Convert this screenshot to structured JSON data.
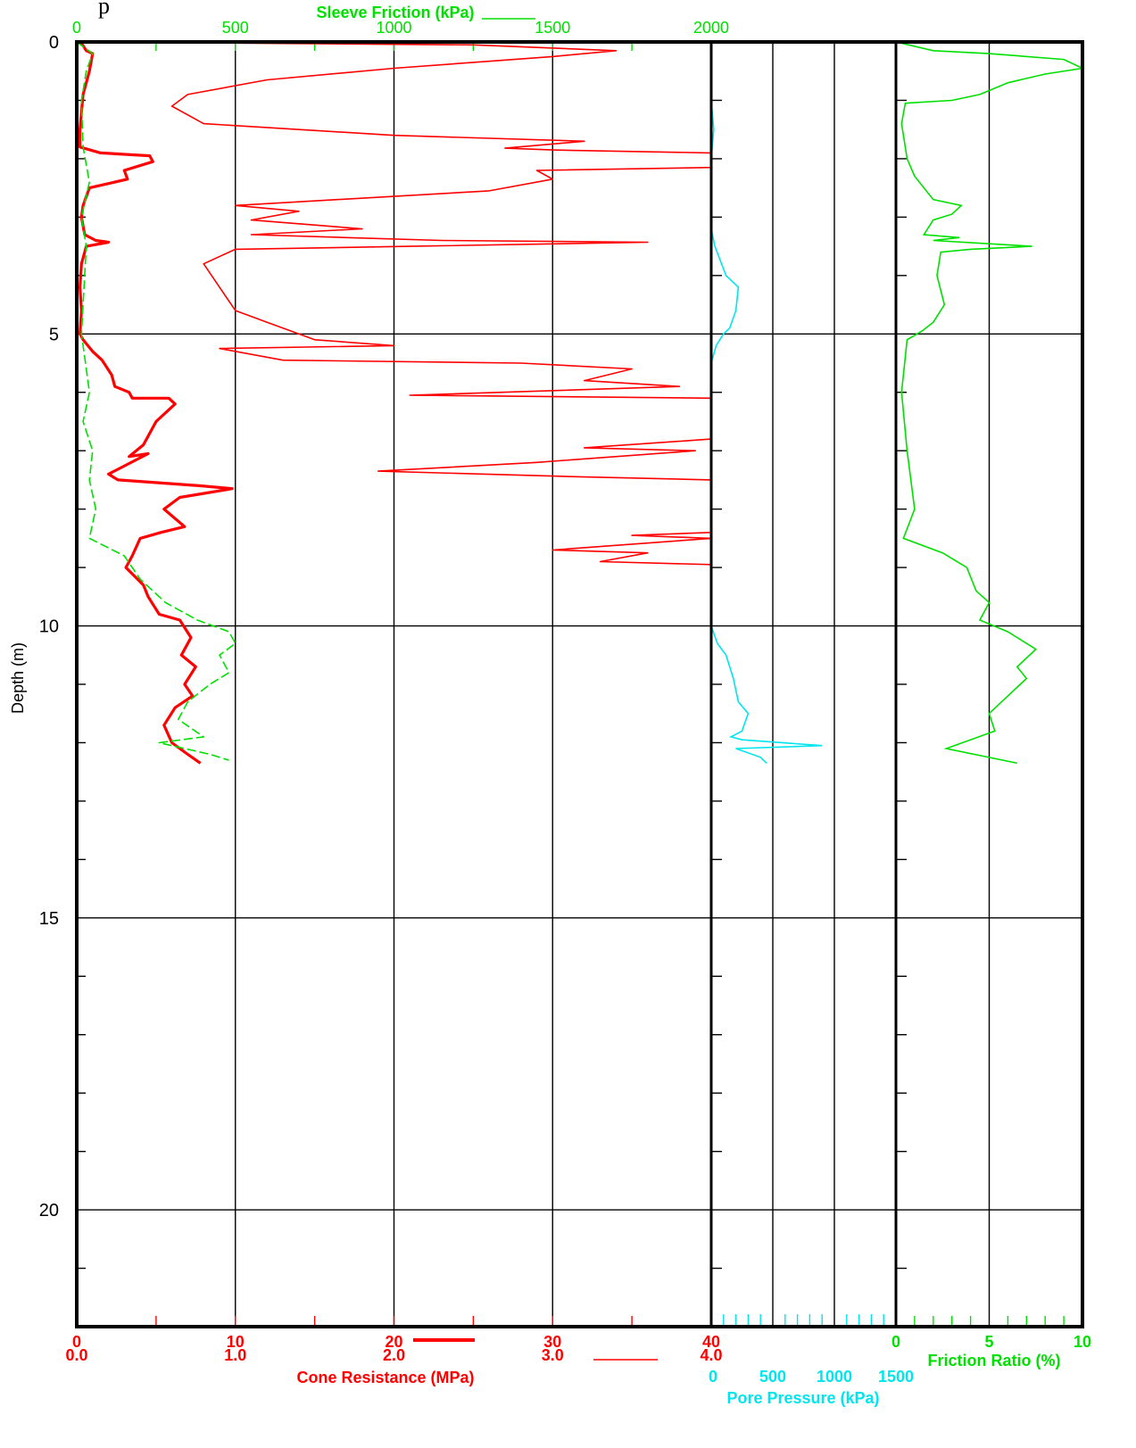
{
  "header_fragment": "p",
  "colors": {
    "cone": "#ff0000",
    "sleeve": "#00e000",
    "pore": "#00e5ee",
    "frame": "#000000"
  },
  "chart_data": {
    "type": "line",
    "y_axis": {
      "label": "Depth (m)",
      "range": [
        0,
        22
      ],
      "ticks": [
        "0",
        "5",
        "10",
        "15",
        "20"
      ],
      "tick_values": [
        0,
        5,
        10,
        15,
        20
      ],
      "reversed": true
    },
    "panels": [
      {
        "id": "cone-sleeve",
        "grid": true,
        "axes": {
          "sleeve_friction": {
            "label": "Sleeve Friction (kPa)",
            "range": [
              0,
              2000
            ],
            "ticks": [
              "0",
              "500",
              "1000",
              "1500",
              "2000"
            ],
            "tick_values": [
              0,
              500,
              1000,
              1500,
              2000
            ]
          },
          "cone_resistance_primary": {
            "label": "Cone Resistance (MPa)",
            "range": [
              0,
              40
            ],
            "ticks": [
              "0",
              "10",
              "20",
              "30",
              "40"
            ],
            "tick_values": [
              0,
              10,
              20,
              30,
              40
            ]
          },
          "cone_resistance_expanded": {
            "range": [
              0,
              4
            ],
            "ticks": [
              "0.0",
              "1.0",
              "2.0",
              "3.0",
              "4.0"
            ],
            "tick_values": [
              0,
              1,
              2,
              3,
              4
            ]
          }
        },
        "series": [
          {
            "key": "qc_thick",
            "scale": "cone_resistance_primary",
            "style": "thick",
            "points": [
              [
                0,
                0
              ],
              [
                0.3,
                0.02
              ],
              [
                0.6,
                0.15
              ],
              [
                1.0,
                0.2
              ],
              [
                0.8,
                0.5
              ],
              [
                0.4,
                0.9
              ],
              [
                0.2,
                1.5
              ],
              [
                0.2,
                1.8
              ],
              [
                1.5,
                1.9
              ],
              [
                4.6,
                1.95
              ],
              [
                4.8,
                2.05
              ],
              [
                3.0,
                2.2
              ],
              [
                3.2,
                2.35
              ],
              [
                0.8,
                2.5
              ],
              [
                0.4,
                2.8
              ],
              [
                0.3,
                3.0
              ],
              [
                0.5,
                3.3
              ],
              [
                1.2,
                3.4
              ],
              [
                2.0,
                3.43
              ],
              [
                0.6,
                3.5
              ],
              [
                0.3,
                3.8
              ],
              [
                0.2,
                4.2
              ],
              [
                0.3,
                4.6
              ],
              [
                0.2,
                5.0
              ],
              [
                0.4,
                5.1
              ],
              [
                1.0,
                5.3
              ],
              [
                1.6,
                5.45
              ],
              [
                2.2,
                5.7
              ],
              [
                2.4,
                5.9
              ],
              [
                3.3,
                6.0
              ],
              [
                3.5,
                6.1
              ],
              [
                5.8,
                6.1
              ],
              [
                6.2,
                6.2
              ],
              [
                5.0,
                6.5
              ],
              [
                4.2,
                6.9
              ],
              [
                3.3,
                7.1
              ],
              [
                4.5,
                7.05
              ],
              [
                2.0,
                7.4
              ],
              [
                2.6,
                7.5
              ],
              [
                7.8,
                7.6
              ],
              [
                9.8,
                7.65
              ],
              [
                6.5,
                7.8
              ],
              [
                5.5,
                8.0
              ],
              [
                6.8,
                8.3
              ],
              [
                5.3,
                8.4
              ],
              [
                4.0,
                8.5
              ],
              [
                3.5,
                8.8
              ],
              [
                3.1,
                9.0
              ],
              [
                4.2,
                9.3
              ],
              [
                4.5,
                9.5
              ],
              [
                5.2,
                9.8
              ],
              [
                6.5,
                9.9
              ],
              [
                7.2,
                10.2
              ],
              [
                6.6,
                10.5
              ],
              [
                7.5,
                10.7
              ],
              [
                6.8,
                11.0
              ],
              [
                7.3,
                11.2
              ],
              [
                6.2,
                11.4
              ],
              [
                5.5,
                11.7
              ],
              [
                6.0,
                12.0
              ],
              [
                7.0,
                12.2
              ],
              [
                7.8,
                12.35
              ]
            ]
          },
          {
            "key": "qc_thin",
            "scale": "cone_resistance_expanded",
            "style": "thin",
            "points": [
              [
                0,
                0
              ],
              [
                2.5,
                0.05
              ],
              [
                3.4,
                0.15
              ],
              [
                3.0,
                0.25
              ],
              [
                2.0,
                0.45
              ],
              [
                1.2,
                0.65
              ],
              [
                0.7,
                0.9
              ],
              [
                0.6,
                1.1
              ],
              [
                0.8,
                1.4
              ],
              [
                2.0,
                1.6
              ],
              [
                3.2,
                1.7
              ],
              [
                2.7,
                1.82
              ],
              [
                3.0,
                1.85
              ],
              [
                4.0,
                1.9
              ],
              [
                4.0,
                2.15
              ],
              [
                2.9,
                2.2
              ],
              [
                3.0,
                2.35
              ],
              [
                2.6,
                2.55
              ],
              [
                1.0,
                2.8
              ],
              [
                1.4,
                2.9
              ],
              [
                1.1,
                3.05
              ],
              [
                1.8,
                3.2
              ],
              [
                1.1,
                3.3
              ],
              [
                1.7,
                3.35
              ],
              [
                2.3,
                3.4
              ],
              [
                3.6,
                3.43
              ],
              [
                2.1,
                3.5
              ],
              [
                1.0,
                3.55
              ],
              [
                0.8,
                3.8
              ],
              [
                0.9,
                4.2
              ],
              [
                1.0,
                4.6
              ],
              [
                1.2,
                4.8
              ],
              [
                1.5,
                5.1
              ],
              [
                2.0,
                5.2
              ],
              [
                0.9,
                5.25
              ],
              [
                1.3,
                5.45
              ],
              [
                2.8,
                5.5
              ],
              [
                3.5,
                5.6
              ],
              [
                3.2,
                5.8
              ],
              [
                3.8,
                5.9
              ],
              [
                2.1,
                6.05
              ],
              [
                4.0,
                6.1
              ],
              [
                4.0,
                6.8
              ],
              [
                3.2,
                6.95
              ],
              [
                3.9,
                7.0
              ],
              [
                2.9,
                7.2
              ],
              [
                1.9,
                7.35
              ],
              [
                3.2,
                7.45
              ],
              [
                4.0,
                7.5
              ],
              [
                4.0,
                8.4
              ],
              [
                3.5,
                8.45
              ],
              [
                4.0,
                8.5
              ],
              [
                3.0,
                8.7
              ],
              [
                3.6,
                8.75
              ],
              [
                3.3,
                8.9
              ],
              [
                4.0,
                8.95
              ],
              [
                4.0,
                12.35
              ]
            ]
          },
          {
            "key": "fs",
            "scale": "sleeve_friction",
            "style": "dashed",
            "points": [
              [
                0,
                0
              ],
              [
                50,
                0.2
              ],
              [
                30,
                0.5
              ],
              [
                15,
                1.0
              ],
              [
                20,
                1.8
              ],
              [
                40,
                2.4
              ],
              [
                15,
                3.0
              ],
              [
                30,
                3.5
              ],
              [
                20,
                4.5
              ],
              [
                15,
                5.0
              ],
              [
                30,
                5.6
              ],
              [
                40,
                6.0
              ],
              [
                20,
                6.5
              ],
              [
                50,
                7.0
              ],
              [
                40,
                7.5
              ],
              [
                60,
                8.0
              ],
              [
                40,
                8.5
              ],
              [
                150,
                8.8
              ],
              [
                200,
                9.2
              ],
              [
                280,
                9.6
              ],
              [
                380,
                9.9
              ],
              [
                480,
                10.1
              ],
              [
                500,
                10.3
              ],
              [
                450,
                10.5
              ],
              [
                480,
                10.8
              ],
              [
                420,
                11.0
              ],
              [
                350,
                11.3
              ],
              [
                320,
                11.6
              ],
              [
                400,
                11.9
              ],
              [
                260,
                12.0
              ],
              [
                420,
                12.2
              ],
              [
                480,
                12.3
              ]
            ]
          }
        ]
      },
      {
        "id": "pore-pressure",
        "axis": {
          "label": "Pore Pressure (kPa)",
          "range": [
            0,
            1500
          ],
          "ticks": [
            "0",
            "500",
            "1000",
            "1500"
          ],
          "tick_values": [
            0,
            500,
            1000,
            1500
          ]
        },
        "series": [
          {
            "key": "u2",
            "points": [
              [
                0,
                0
              ],
              [
                0,
                1.0
              ],
              [
                20,
                1.5
              ],
              [
                0,
                2.0
              ],
              [
                0,
                3.2
              ],
              [
                30,
                3.5
              ],
              [
                120,
                4.0
              ],
              [
                220,
                4.2
              ],
              [
                200,
                4.6
              ],
              [
                150,
                4.9
              ],
              [
                100,
                5.0
              ],
              [
                40,
                5.2
              ],
              [
                0,
                5.5
              ],
              [
                0,
                10.0
              ],
              [
                50,
                10.3
              ],
              [
                120,
                10.5
              ],
              [
                180,
                10.9
              ],
              [
                220,
                11.3
              ],
              [
                300,
                11.5
              ],
              [
                250,
                11.8
              ],
              [
                160,
                11.9
              ],
              [
                250,
                11.95
              ],
              [
                900,
                12.05
              ],
              [
                200,
                12.1
              ],
              [
                400,
                12.25
              ],
              [
                450,
                12.35
              ]
            ]
          }
        ]
      },
      {
        "id": "friction-ratio",
        "axis": {
          "label": "Friction Ratio (%)",
          "range": [
            0,
            10
          ],
          "ticks": [
            "0",
            "5",
            "10"
          ],
          "tick_values": [
            0,
            5,
            10
          ]
        },
        "series": [
          {
            "key": "rf",
            "points": [
              [
                0,
                0
              ],
              [
                2,
                0.15
              ],
              [
                5,
                0.2
              ],
              [
                9,
                0.3
              ],
              [
                10,
                0.45
              ],
              [
                8,
                0.55
              ],
              [
                6,
                0.7
              ],
              [
                4.5,
                0.9
              ],
              [
                3,
                1.0
              ],
              [
                0.5,
                1.05
              ],
              [
                0.3,
                1.4
              ],
              [
                0.6,
                2.0
              ],
              [
                1,
                2.3
              ],
              [
                2,
                2.7
              ],
              [
                3.5,
                2.8
              ],
              [
                3.0,
                2.95
              ],
              [
                2.0,
                3.05
              ],
              [
                1.5,
                3.3
              ],
              [
                3.4,
                3.35
              ],
              [
                2.0,
                3.4
              ],
              [
                7.3,
                3.5
              ],
              [
                4.0,
                3.55
              ],
              [
                2.4,
                3.6
              ],
              [
                2.2,
                4.0
              ],
              [
                2.6,
                4.5
              ],
              [
                2.0,
                4.8
              ],
              [
                1.4,
                4.95
              ],
              [
                0.6,
                5.1
              ],
              [
                0.3,
                6.0
              ],
              [
                0.6,
                7.0
              ],
              [
                1.0,
                8.0
              ],
              [
                0.4,
                8.5
              ],
              [
                2.5,
                8.75
              ],
              [
                3.8,
                9.0
              ],
              [
                4.3,
                9.4
              ],
              [
                5.0,
                9.6
              ],
              [
                4.5,
                9.9
              ],
              [
                6.0,
                10.1
              ],
              [
                7.5,
                10.4
              ],
              [
                6.5,
                10.7
              ],
              [
                7.0,
                10.9
              ],
              [
                6.0,
                11.2
              ],
              [
                5.0,
                11.5
              ],
              [
                5.3,
                11.8
              ],
              [
                2.7,
                12.1
              ],
              [
                6.5,
                12.35
              ]
            ]
          }
        ]
      }
    ]
  }
}
